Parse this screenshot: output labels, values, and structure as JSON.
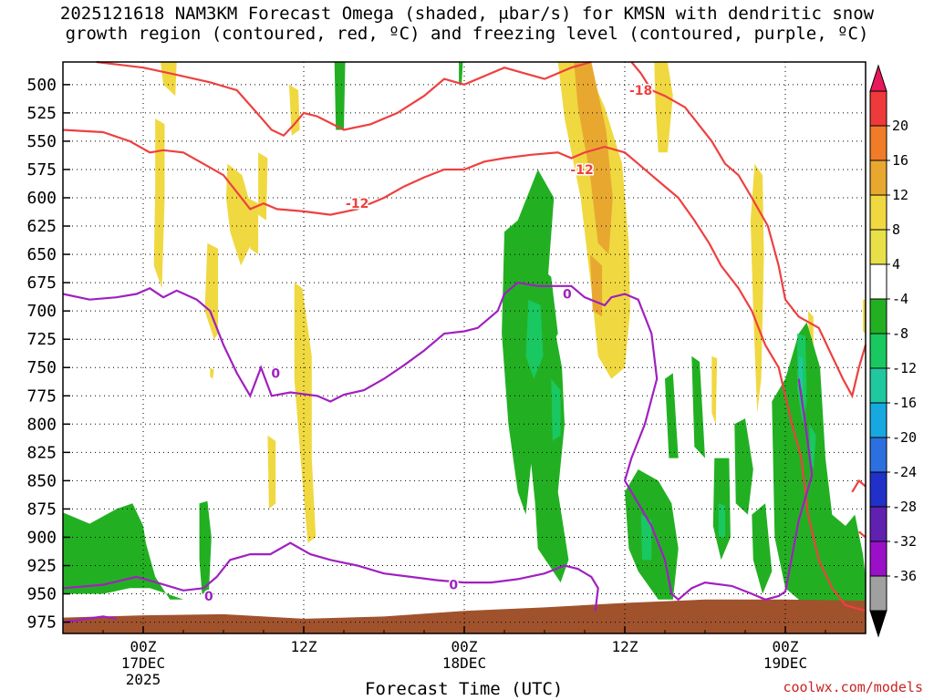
{
  "title_line1": "2025121618 NAM3KM Forecast Omega (shaded, μbar/s) for KMSN with dendritic snow",
  "title_line2": "growth region (contoured, red, ºC) and freezing level (contoured, purple, ºC)",
  "credit": "coolwx.com/models",
  "chart_data": {
    "type": "heatmap",
    "title": "2025121618 NAM3KM Forecast Omega (shaded, μbar/s) for KMSN with dendritic snow growth region (contoured, red, ºC) and freezing level (contoured, purple, ºC)",
    "xlabel": "Forecast Time (UTC)",
    "ylabel": "",
    "x_ticks": [
      {
        "label": [
          "00Z",
          "17DEC",
          "2025"
        ],
        "hour": 6
      },
      {
        "label": [
          "12Z"
        ],
        "hour": 18
      },
      {
        "label": [
          "00Z",
          "18DEC"
        ],
        "hour": 30
      },
      {
        "label": [
          "12Z"
        ],
        "hour": 42
      },
      {
        "label": [
          "00Z",
          "19DEC"
        ],
        "hour": 54
      }
    ],
    "x_range_hours": [
      0,
      60
    ],
    "y_levels_mb": [
      500,
      525,
      550,
      575,
      600,
      625,
      650,
      675,
      700,
      725,
      750,
      775,
      800,
      825,
      850,
      875,
      900,
      925,
      950,
      975
    ],
    "y_range_mb": [
      480,
      985
    ],
    "grid": true,
    "colorbar": {
      "labels": [
        "20",
        "16",
        "12",
        "8",
        "4",
        "-4",
        "-8",
        "-12",
        "-16",
        "-20",
        "-24",
        "-28",
        "-32",
        "-36"
      ],
      "colors": [
        "#e8185a",
        "#ee3a3a",
        "#f07c28",
        "#e8a830",
        "#f0d840",
        "#e8e048",
        "#ffffff",
        "#22b022",
        "#19c860",
        "#20c8a0",
        "#18a8e0",
        "#2c70e0",
        "#2030c8",
        "#6020b0",
        "#9a10c8",
        "#a0a0a0",
        "#000000"
      ]
    },
    "contours": [
      {
        "label": "-18",
        "color": "#ee4040"
      },
      {
        "label": "-12",
        "color": "#ee4040"
      },
      {
        "label": "-12",
        "color": "#ee4040"
      },
      {
        "label": "0",
        "color": "#a020c0"
      },
      {
        "label": "0",
        "color": "#a020c0"
      },
      {
        "label": "0",
        "color": "#a020c0"
      },
      {
        "label": "0",
        "color": "#a020c0"
      }
    ],
    "terrain_color": "#a0522d"
  }
}
